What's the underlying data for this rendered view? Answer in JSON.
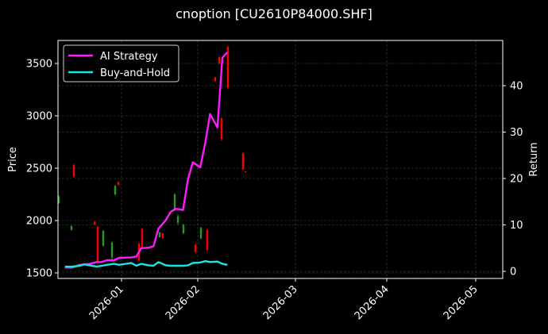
{
  "title": "cnoption [CU2610P84000.SHF]",
  "colors": {
    "background": "#000000",
    "ai_strategy": "#ff1aff",
    "buy_and_hold": "#1ae5e5",
    "candle_up": "#1f9e1f",
    "candle_down": "#ff0000",
    "grid": "#444444",
    "axis": "#ffffff"
  },
  "chart_data": {
    "type": "line",
    "title": "cnoption [CU2610P84000.SHF]",
    "xlabel": "",
    "ylabel": "Price",
    "ylabel_right": "Return",
    "x_tick_labels": [
      "2026-01",
      "2026-02",
      "2026-03",
      "2026-04",
      "2026-05"
    ],
    "y_ticks_left": [
      1500,
      2000,
      2500,
      3000,
      3500
    ],
    "y_ticks_right": [
      0,
      10,
      20,
      30,
      40
    ],
    "ylim_left": [
      1450,
      3720
    ],
    "ylim_right": [
      -1.5,
      49
    ],
    "grid": true,
    "legend_position": "upper left",
    "legend": [
      "AI Strategy",
      "Buy-and-Hold"
    ],
    "x": [
      "2025-12-09",
      "2025-12-12",
      "2025-12-15",
      "2025-12-17",
      "2025-12-19",
      "2025-12-22",
      "2025-12-24",
      "2025-12-26",
      "2025-12-29",
      "2025-12-31",
      "2026-01-05",
      "2026-01-07",
      "2026-01-09",
      "2026-01-12",
      "2026-01-14",
      "2026-01-16",
      "2026-01-19",
      "2026-01-21",
      "2026-01-23",
      "2026-01-26",
      "2026-01-28",
      "2026-01-30",
      "2026-02-02",
      "2026-02-04",
      "2026-02-06",
      "2026-02-09",
      "2026-02-11",
      "2026-02-13"
    ],
    "series": [
      {
        "name": "AI Strategy",
        "axis": "right",
        "values": [
          0.8,
          0.8,
          1.4,
          1.5,
          1.6,
          2.0,
          2.0,
          2.4,
          2.4,
          2.9,
          3.0,
          3.2,
          5.0,
          5.1,
          5.4,
          9.2,
          11.0,
          12.8,
          13.5,
          13.2,
          19.8,
          23.5,
          22.4,
          27.5,
          33.9,
          31.0,
          46.0,
          47.2
        ]
      },
      {
        "name": "Buy-and-Hold",
        "axis": "right",
        "values": [
          1.0,
          1.0,
          1.2,
          1.5,
          1.3,
          1.0,
          1.2,
          1.4,
          1.6,
          1.4,
          1.8,
          1.2,
          1.6,
          1.3,
          1.2,
          2.0,
          1.3,
          1.2,
          1.2,
          1.2,
          1.3,
          1.8,
          1.9,
          2.2,
          2.0,
          2.1,
          1.6,
          1.4
        ]
      }
    ],
    "candles": [
      {
        "x": 74,
        "open": 2230,
        "close": 2170,
        "high": 2240,
        "low": 2160,
        "dir": "up"
      },
      {
        "x": 90,
        "open": 1950,
        "close": 1910,
        "high": 1950,
        "low": 1905,
        "dir": "up"
      },
      {
        "x": 93,
        "open": 2530,
        "close": 2420,
        "high": 2540,
        "low": 2410,
        "dir": "down"
      },
      {
        "x": 119,
        "open": 1990,
        "close": 1960,
        "high": 1990,
        "low": 1960,
        "dir": "down"
      },
      {
        "x": 123,
        "open": 1940,
        "close": 1600,
        "high": 1950,
        "low": 1590,
        "dir": "down"
      },
      {
        "x": 130,
        "open": 1900,
        "close": 1760,
        "high": 1910,
        "low": 1750,
        "dir": "up"
      },
      {
        "x": 141,
        "open": 1790,
        "close": 1650,
        "high": 1800,
        "low": 1630,
        "dir": "up"
      },
      {
        "x": 145,
        "open": 2330,
        "close": 2250,
        "high": 2340,
        "low": 2240,
        "dir": "up"
      },
      {
        "x": 149,
        "open": 2370,
        "close": 2340,
        "high": 2370,
        "low": 2340,
        "dir": "down"
      },
      {
        "x": 175,
        "open": 1780,
        "close": 1620,
        "high": 1790,
        "low": 1610,
        "dir": "down"
      },
      {
        "x": 179,
        "open": 1920,
        "close": 1750,
        "high": 1930,
        "low": 1740,
        "dir": "down"
      },
      {
        "x": 201,
        "open": 1890,
        "close": 1840,
        "high": 1890,
        "low": 1840,
        "dir": "up"
      },
      {
        "x": 205,
        "open": 1880,
        "close": 1830,
        "high": 1880,
        "low": 1830,
        "dir": "down"
      },
      {
        "x": 220,
        "open": 2250,
        "close": 2100,
        "high": 2260,
        "low": 2090,
        "dir": "up"
      },
      {
        "x": 224,
        "open": 2040,
        "close": 1980,
        "high": 2060,
        "low": 1960,
        "dir": "up"
      },
      {
        "x": 231,
        "open": 1960,
        "close": 1880,
        "high": 1970,
        "low": 1870,
        "dir": "up"
      },
      {
        "x": 246,
        "open": 1770,
        "close": 1700,
        "high": 1780,
        "low": 1690,
        "dir": "down"
      },
      {
        "x": 253,
        "open": 1930,
        "close": 1830,
        "high": 1940,
        "low": 1820,
        "dir": "up"
      },
      {
        "x": 261,
        "open": 1910,
        "close": 1720,
        "high": 1920,
        "low": 1710,
        "dir": "down"
      },
      {
        "x": 271,
        "open": 3370,
        "close": 3330,
        "high": 3370,
        "low": 3330,
        "dir": "down"
      },
      {
        "x": 276,
        "open": 3560,
        "close": 3500,
        "high": 3570,
        "low": 3490,
        "dir": "down"
      },
      {
        "x": 279,
        "open": 2980,
        "close": 2780,
        "high": 2980,
        "low": 2760,
        "dir": "down"
      },
      {
        "x": 287,
        "open": 3660,
        "close": 3270,
        "high": 3670,
        "low": 3260,
        "dir": "down"
      },
      {
        "x": 306,
        "open": 2640,
        "close": 2490,
        "high": 2650,
        "low": 2480,
        "dir": "down"
      },
      {
        "x": 309,
        "open": 2470,
        "close": 2460,
        "high": 2470,
        "low": 2460,
        "dir": "down"
      }
    ]
  }
}
